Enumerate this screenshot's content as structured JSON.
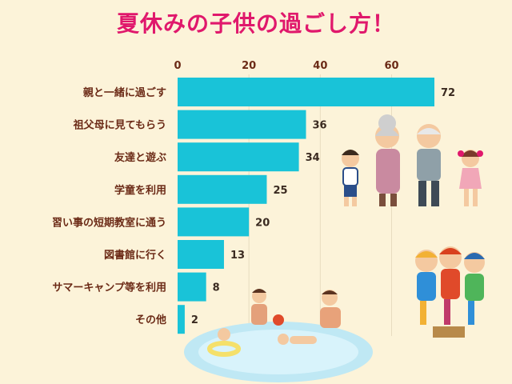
{
  "chart_data": {
    "type": "bar",
    "orientation": "horizontal",
    "title": "夏休みの子供の過ごし方！",
    "categories": [
      "親と一緒に過ごす",
      "祖父母に見てもらう",
      "友達と遊ぶ",
      "学童を利用",
      "習い事の短期教室に通う",
      "図書館に行く",
      "サマーキャンプ等を利用",
      "その他"
    ],
    "values": [
      72,
      36,
      34,
      25,
      20,
      13,
      8,
      2
    ],
    "xticks": [
      0,
      20,
      40,
      60
    ],
    "xlim": [
      0,
      72
    ],
    "grid": true,
    "bar_color": "#19c3d8",
    "title_color": "#e0186c"
  },
  "illustrations": [
    "family-grandparents-icon",
    "kids-playing-icon",
    "swimming-pool-icon"
  ]
}
